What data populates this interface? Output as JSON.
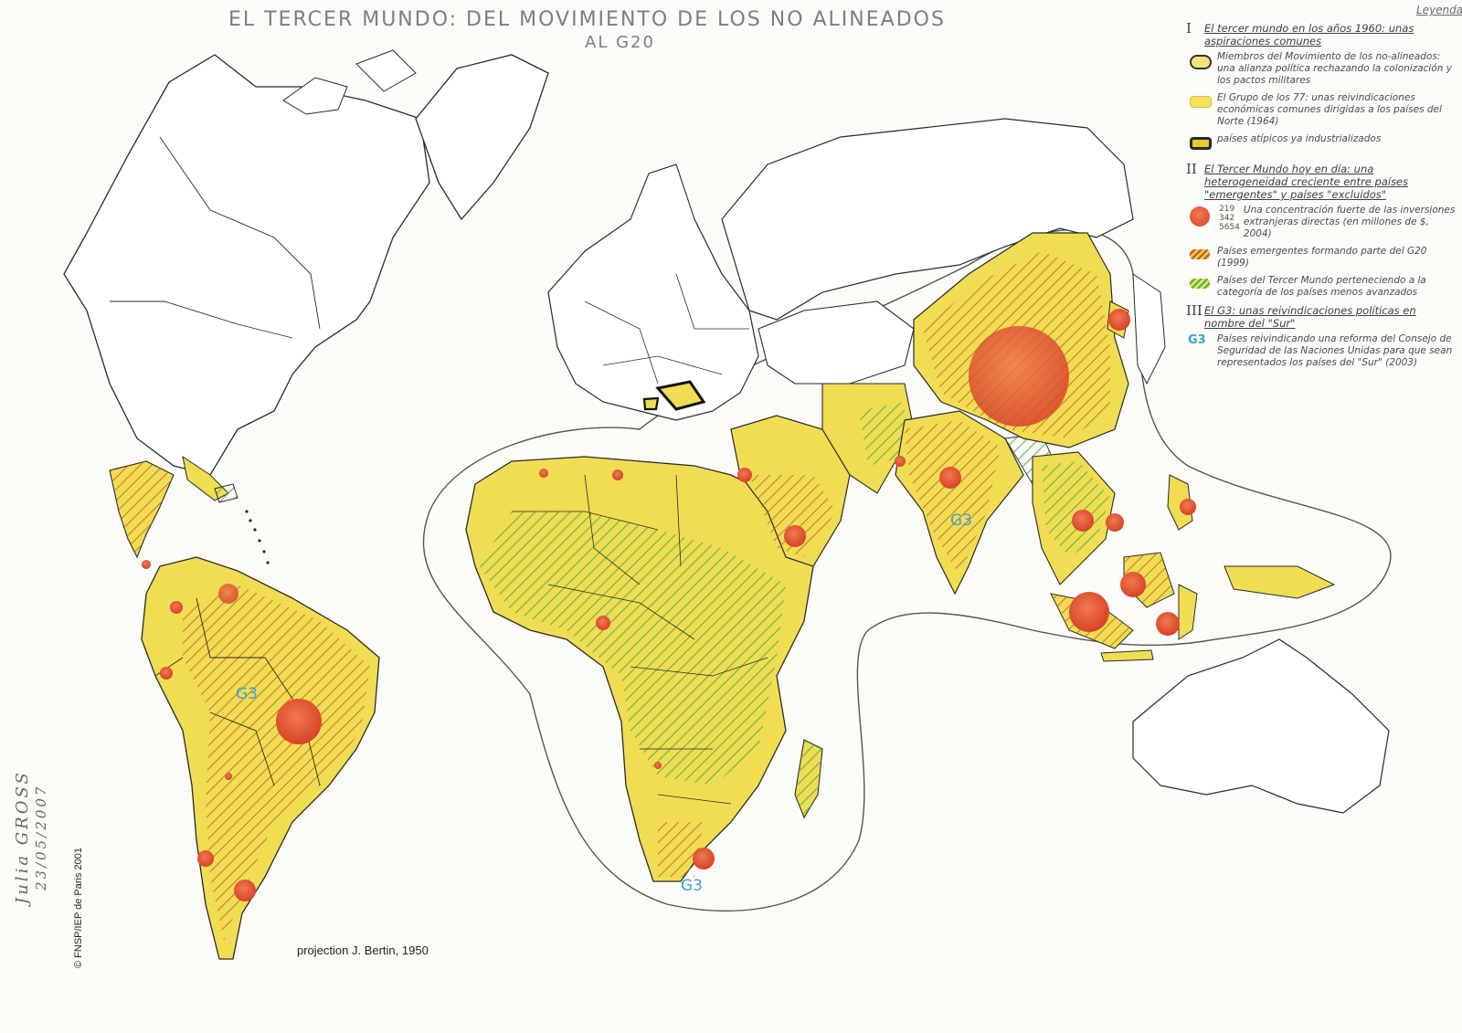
{
  "title": {
    "line1": "EL TERCER MUNDO: DEL MOVIMIENTO DE LOS NO ALINEADOS",
    "line2": "AL G20"
  },
  "legend": {
    "heading": "Leyenda",
    "section1": {
      "numeral": "I",
      "title": "El tercer mundo en los años 1960: unas aspiraciones comunes",
      "items": [
        {
          "symbol": "ring-yellow",
          "text": "Miembros del Movimiento de los no-alineados: una alianza política rechazando la colonización y los pactos militares"
        },
        {
          "symbol": "yellow",
          "text": "El Grupo de los 77: unas reivindicaciones económicas comunes dirigidas a los países del Norte (1964)"
        },
        {
          "symbol": "yellow-black-outline",
          "text": "países atípicos ya industrializados"
        }
      ]
    },
    "section2": {
      "numeral": "II",
      "title": "El Tercer Mundo hoy en día: una heterogeneidad creciente entre países \"emergentes\" y países \"excluidos\"",
      "fdi_values": [
        "219 342",
        "5654"
      ],
      "items": [
        {
          "symbol": "red-circle",
          "text": "Una concentración fuerte de las inversiones extranjeras directas (en millones de $, 2004)"
        },
        {
          "symbol": "orange-red-hatch",
          "text": "Países emergentes formando parte del G20 (1999)"
        },
        {
          "symbol": "green-hatch",
          "text": "Países del Tercer Mundo perteneciendo a la categoría de los países menos avanzados"
        }
      ]
    },
    "section3": {
      "numeral": "III",
      "title": "El G3: unas reivindicaciones políticas en nombre del \"Sur\"",
      "items": [
        {
          "symbol": "G3",
          "text": "Países reivindicando una reforma del Consejo de Seguridad de las Naciones Unidas para que sean representados los países del \"Sur\" (2003)"
        }
      ]
    }
  },
  "map_labels": {
    "g3_america": "G3",
    "g3_india": "G3",
    "g3_africa": "G3"
  },
  "credits": {
    "copyright": "© FNSP/IEP de Paris 2001",
    "projection": "projection J. Bertin, 1950",
    "author": "Julia GROSS",
    "date": "23/05/2007"
  },
  "colors": {
    "g77_yellow": "#f0dd52",
    "emergent_hatch": "#c0552f",
    "pma_hatch": "#4fb04a",
    "fdi_circle": "#e04a2c",
    "g3_label": "#3aa3d8",
    "outline": "#2a2a2a"
  }
}
